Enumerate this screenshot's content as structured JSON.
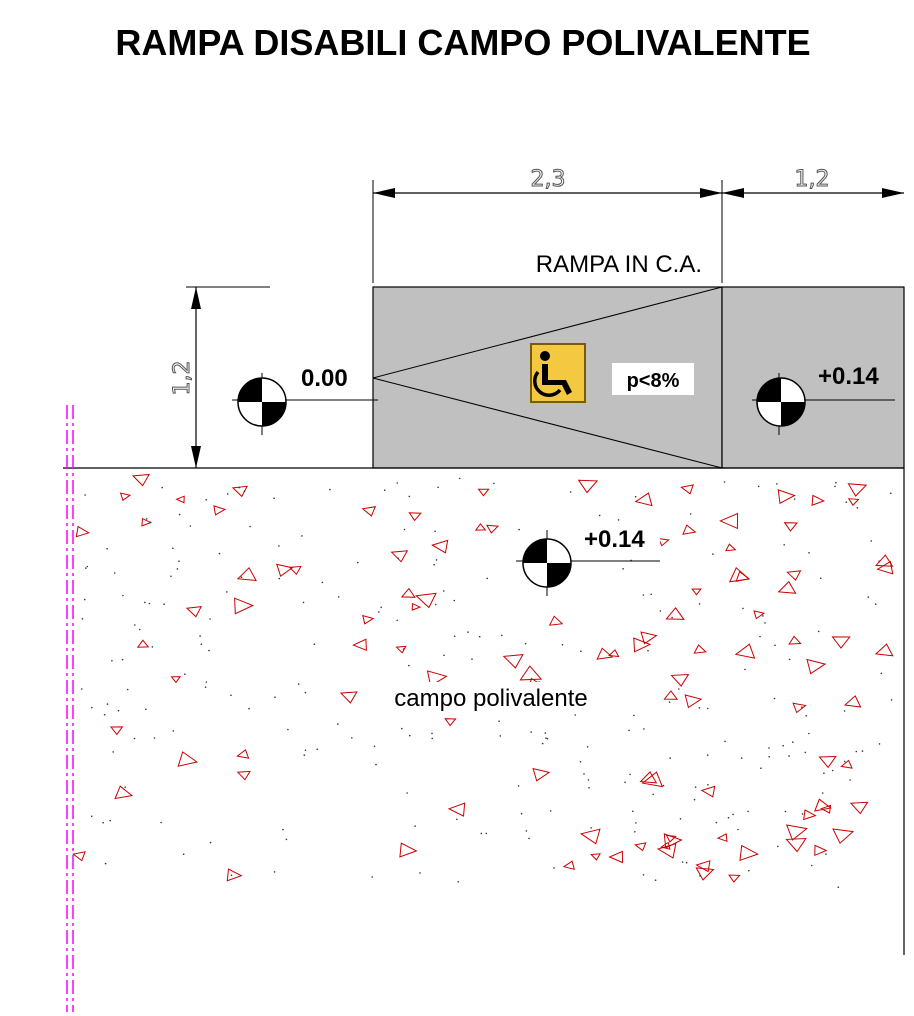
{
  "title": "RAMPA DISABILI CAMPO POLIVALENTE",
  "dimensions": {
    "ramp_length": "2,3",
    "landing_length": "1,2",
    "ramp_width": "1,2"
  },
  "ramp_label": "RAMPA IN C.A.",
  "slope_label": "p<8%",
  "levels": {
    "start": "0.00",
    "landing": "+0.14",
    "field": "+0.14"
  },
  "field_label": "campo polivalente",
  "icons": {
    "accessibility": "wheelchair-icon",
    "level_marker": "level-marker-icon"
  },
  "colors": {
    "ramp_fill": "#c0c0c0",
    "sign_fill": "#f5c842",
    "hatch": "#cc0000",
    "boundary": "#ff00ff"
  }
}
